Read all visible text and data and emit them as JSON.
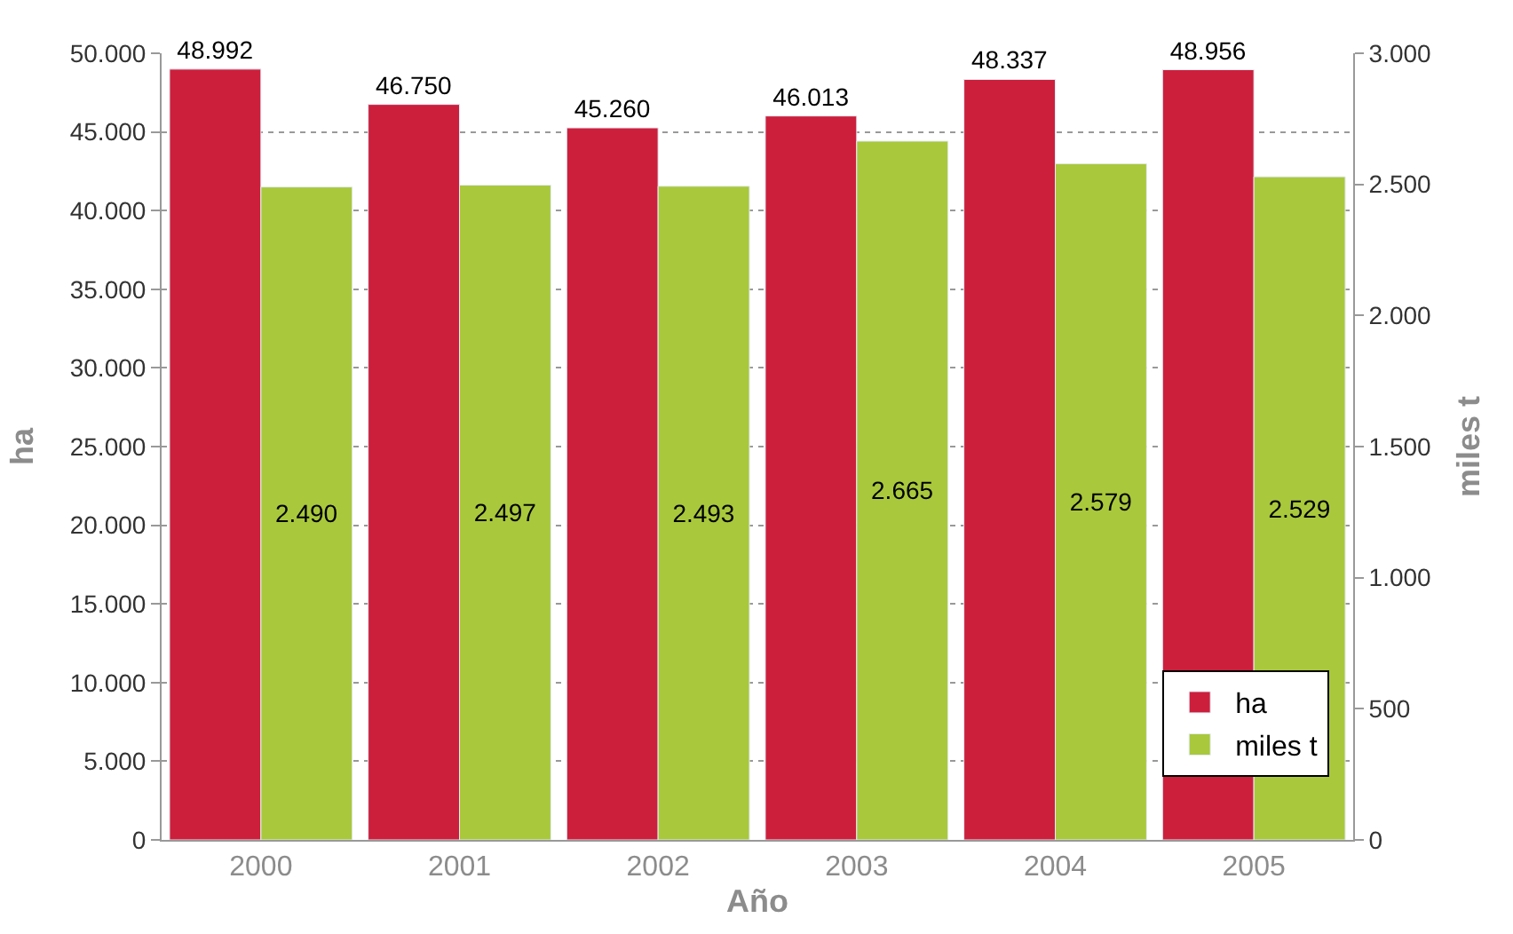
{
  "chart_data": {
    "type": "bar",
    "xlabel": "Año",
    "ylabel": "ha",
    "y2label": "miles t",
    "categories": [
      "2000",
      "2001",
      "2002",
      "2003",
      "2004",
      "2005"
    ],
    "series": [
      {
        "name": "ha",
        "color": "#cc1f3c",
        "values": [
          48992,
          46750,
          45260,
          46013,
          48337,
          48956
        ],
        "value_labels": [
          "48.992",
          "46.750",
          "45.260",
          "46.013",
          "48.337",
          "48.956"
        ]
      },
      {
        "name": "miles t",
        "color": "#a9c83c",
        "axis": "y2",
        "values": [
          2490,
          2497,
          2493,
          2665,
          2579,
          2529
        ],
        "value_labels": [
          "2.490",
          "2.497",
          "2.493",
          "2.665",
          "2.579",
          "2.529"
        ]
      }
    ],
    "ylim": [
      0,
      50000
    ],
    "yticks": [
      {
        "value": 0,
        "label": "0"
      },
      {
        "value": 5000,
        "label": "5.000"
      },
      {
        "value": 10000,
        "label": "10.000"
      },
      {
        "value": 15000,
        "label": "15.000"
      },
      {
        "value": 20000,
        "label": "20.000"
      },
      {
        "value": 25000,
        "label": "25.000"
      },
      {
        "value": 30000,
        "label": "30.000"
      },
      {
        "value": 35000,
        "label": "35.000"
      },
      {
        "value": 40000,
        "label": "40.000"
      },
      {
        "value": 45000,
        "label": "45.000"
      },
      {
        "value": 50000,
        "label": "50.000"
      }
    ],
    "y2lim": [
      0,
      3000
    ],
    "y2ticks": [
      {
        "value": 0,
        "label": "0"
      },
      {
        "value": 500,
        "label": "500"
      },
      {
        "value": 1000,
        "label": "1.000"
      },
      {
        "value": 1500,
        "label": "1.500"
      },
      {
        "value": 2000,
        "label": "2.000"
      },
      {
        "value": 2500,
        "label": "2.500"
      },
      {
        "value": 3000,
        "label": "3.000"
      }
    ],
    "grid": "y",
    "legend": "bottom right"
  }
}
